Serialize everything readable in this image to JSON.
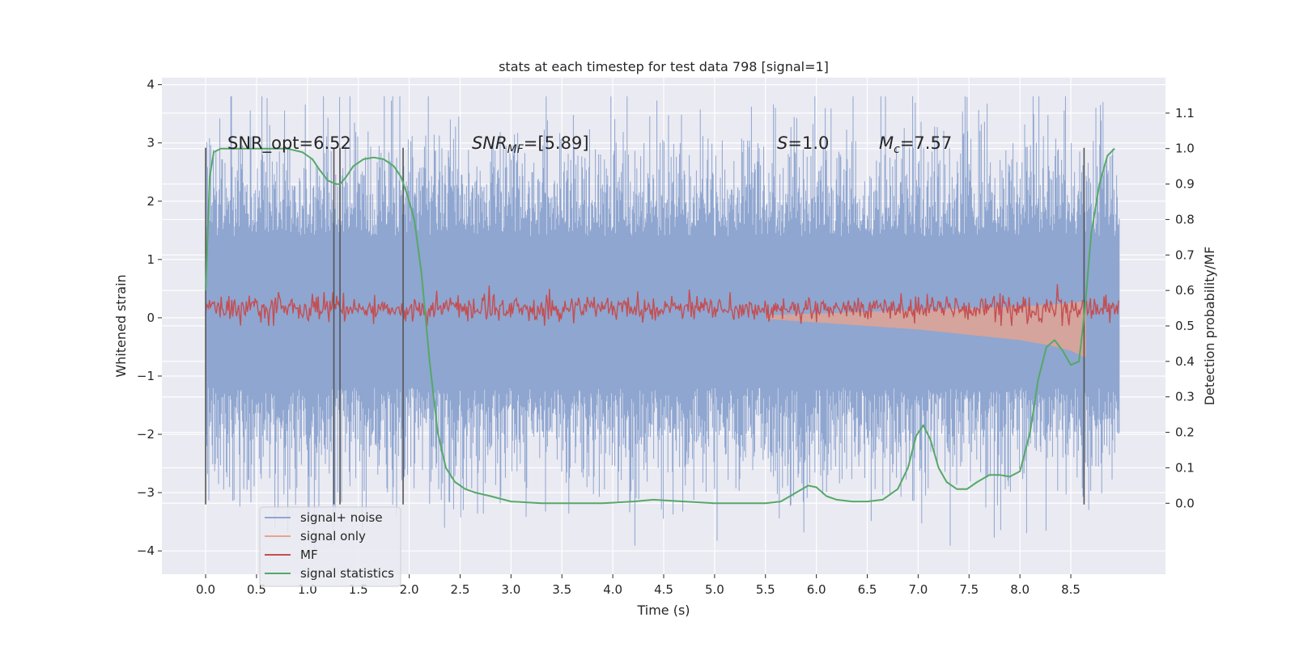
{
  "chart_data": {
    "type": "line",
    "title": "stats at each timestep for test data 798 [signal=1]",
    "xlabel": "Time (s)",
    "ylabel": "Whitened strain",
    "ylabel_right": "Detection probability/MF",
    "xlim": [
      -0.43,
      9.43
    ],
    "ylim": [
      -4.4,
      4.12
    ],
    "ylim_right": [
      -0.2,
      1.2
    ],
    "x_ticks": [
      0.0,
      0.5,
      1.0,
      1.5,
      2.0,
      2.5,
      3.0,
      3.5,
      4.0,
      4.5,
      5.0,
      5.5,
      6.0,
      6.5,
      7.0,
      7.5,
      8.0,
      8.5
    ],
    "x_tick_labels": [
      "0.0",
      "0.5",
      "1.0",
      "1.5",
      "2.0",
      "2.5",
      "3.0",
      "3.5",
      "4.0",
      "4.5",
      "5.0",
      "5.5",
      "6.0",
      "6.5",
      "7.0",
      "7.5",
      "8.0",
      "8.5"
    ],
    "y_ticks": [
      -4,
      -3,
      -2,
      -1,
      0,
      1,
      2,
      3,
      4
    ],
    "y_tick_labels": [
      "−4",
      "−3",
      "−2",
      "−1",
      "0",
      "1",
      "2",
      "3",
      "4"
    ],
    "y_ticks_right": [
      0.0,
      0.1,
      0.2,
      0.3,
      0.4,
      0.5,
      0.6,
      0.7,
      0.8,
      0.9,
      1.0,
      1.1
    ],
    "y_tick_labels_right": [
      "0.0",
      "0.1",
      "0.2",
      "0.3",
      "0.4",
      "0.5",
      "0.6",
      "0.7",
      "0.8",
      "0.9",
      "1.0",
      "1.1"
    ],
    "grid": true,
    "legend_position": "lower-left",
    "annotations": [
      {
        "text": "SNR_opt=6.52",
        "x": 0.2,
        "y_right": 1.02
      },
      {
        "text": "SNR_MF=[5.89]",
        "x": 2.6,
        "y_right": 1.02
      },
      {
        "text": "S=1.0",
        "x": 5.6,
        "y_right": 1.02
      },
      {
        "text": "M_c=7.57",
        "x": 6.6,
        "y_right": 1.02
      }
    ],
    "annotation_display": [
      "SNR_opt=6.52",
      "SNR",
      "MF",
      "=[5.89]",
      "S",
      "=1.0",
      "M",
      "c",
      "=7.57"
    ],
    "vertical_markers_s": [
      0.0,
      1.26,
      1.32,
      1.94,
      8.63
    ],
    "noise_band": {
      "t_start": 0.0,
      "t_end": 8.98,
      "typical_range": [
        -1.5,
        2.0
      ],
      "peak_range": [
        -4.0,
        3.8
      ]
    },
    "series": [
      {
        "name": "signal+ noise",
        "color": "#8FA6D0",
        "axis": "left",
        "description_values": {
          "t": [
            0,
            9
          ],
          "amplitude_std": 0.9
        }
      },
      {
        "name": "signal only",
        "color": "#E6A48F",
        "axis": "right",
        "envelope": {
          "t": [
            5.5,
            6.0,
            6.5,
            7.0,
            7.5,
            8.0,
            8.3,
            8.5,
            8.65
          ],
          "upper": [
            0.53,
            0.535,
            0.54,
            0.545,
            0.55,
            0.555,
            0.56,
            0.565,
            0.57
          ],
          "lower": [
            0.52,
            0.51,
            0.5,
            0.49,
            0.475,
            0.46,
            0.445,
            0.43,
            0.41
          ]
        }
      },
      {
        "name": "MF",
        "color": "#C44E52",
        "axis": "right",
        "mean": 0.55,
        "range": [
          0.5,
          0.62
        ],
        "t": [
          0,
          9
        ]
      },
      {
        "name": "signal statistics",
        "color": "#55A868",
        "axis": "right",
        "x": [
          0.0,
          0.04,
          0.08,
          0.15,
          0.25,
          0.4,
          0.6,
          0.8,
          0.95,
          1.05,
          1.12,
          1.2,
          1.28,
          1.32,
          1.38,
          1.45,
          1.55,
          1.65,
          1.75,
          1.85,
          1.92,
          1.98,
          2.05,
          2.12,
          2.2,
          2.28,
          2.36,
          2.45,
          2.55,
          2.65,
          2.8,
          3.0,
          3.3,
          3.6,
          3.9,
          4.2,
          4.4,
          4.7,
          5.0,
          5.3,
          5.5,
          5.65,
          5.8,
          5.92,
          6.0,
          6.1,
          6.2,
          6.35,
          6.5,
          6.65,
          6.8,
          6.9,
          6.98,
          7.05,
          7.12,
          7.2,
          7.28,
          7.38,
          7.48,
          7.58,
          7.7,
          7.8,
          7.9,
          8.0,
          8.1,
          8.18,
          8.26,
          8.34,
          8.42,
          8.5,
          8.58,
          8.64,
          8.7,
          8.78,
          8.86,
          8.93
        ],
        "values": [
          0.6,
          0.92,
          0.99,
          1.0,
          1.0,
          1.0,
          1.0,
          1.0,
          0.99,
          0.97,
          0.94,
          0.91,
          0.9,
          0.9,
          0.92,
          0.95,
          0.97,
          0.975,
          0.97,
          0.95,
          0.92,
          0.87,
          0.8,
          0.65,
          0.4,
          0.2,
          0.1,
          0.06,
          0.04,
          0.03,
          0.02,
          0.005,
          0.0,
          0.0,
          0.0,
          0.005,
          0.01,
          0.005,
          0.0,
          0.0,
          0.0,
          0.005,
          0.03,
          0.05,
          0.045,
          0.02,
          0.01,
          0.005,
          0.005,
          0.01,
          0.04,
          0.1,
          0.19,
          0.22,
          0.18,
          0.1,
          0.06,
          0.04,
          0.04,
          0.06,
          0.08,
          0.08,
          0.075,
          0.09,
          0.2,
          0.35,
          0.44,
          0.46,
          0.43,
          0.39,
          0.4,
          0.55,
          0.76,
          0.9,
          0.98,
          1.0
        ]
      }
    ]
  }
}
